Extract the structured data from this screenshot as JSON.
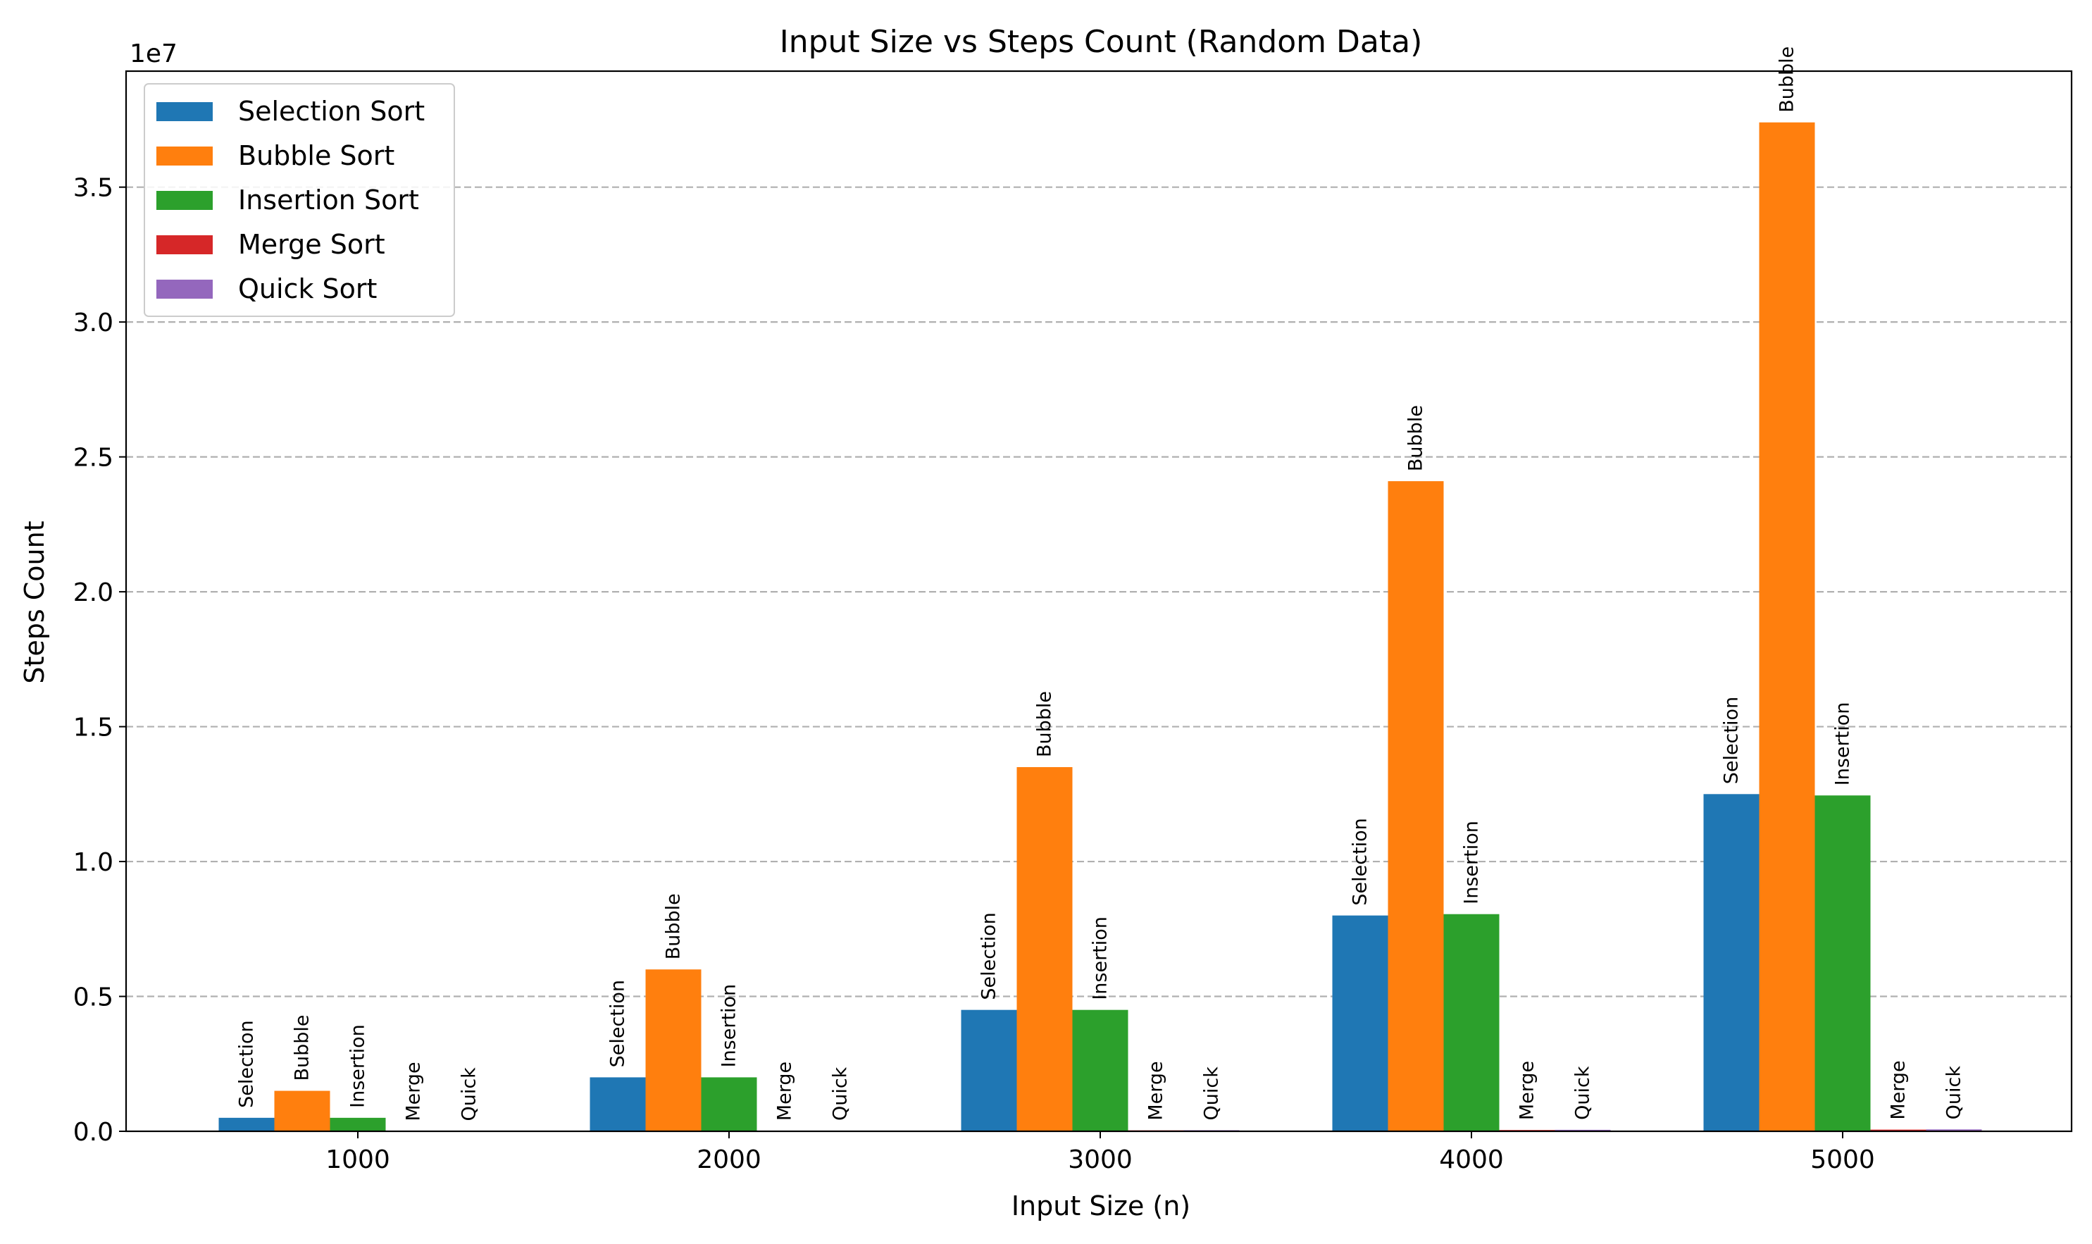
{
  "chart_data": {
    "type": "bar",
    "title": "Input Size vs Steps Count (Random Data)",
    "xlabel": "Input Size (n)",
    "ylabel": "Steps Count",
    "y_offset_label": "1e7",
    "y_scale": 10000000,
    "categories": [
      "1000",
      "2000",
      "3000",
      "4000",
      "5000"
    ],
    "ylim": [
      0,
      39300000
    ],
    "yticks": [
      0,
      5000000,
      10000000,
      15000000,
      20000000,
      25000000,
      30000000,
      35000000
    ],
    "ytick_labels": [
      "0.0",
      "0.5",
      "1.0",
      "1.5",
      "2.0",
      "2.5",
      "3.0",
      "3.5"
    ],
    "grid": "y-dashed",
    "legend_position": "top-left",
    "series": [
      {
        "name": "Selection Sort",
        "bar_label": "Selection",
        "color": "#1f77b4",
        "values": [
          500000,
          2000000,
          4500000,
          8000000,
          12500000
        ]
      },
      {
        "name": "Bubble Sort",
        "bar_label": "Bubble",
        "color": "#ff7f0e",
        "values": [
          1500000,
          6000000,
          13500000,
          24100000,
          37400000
        ]
      },
      {
        "name": "Insertion Sort",
        "bar_label": "Insertion",
        "color": "#2ca02c",
        "values": [
          500000,
          2000000,
          4500000,
          8050000,
          12450000
        ]
      },
      {
        "name": "Merge Sort",
        "bar_label": "Merge",
        "color": "#d62728",
        "values": [
          10000,
          22000,
          35000,
          48000,
          62000
        ]
      },
      {
        "name": "Quick Sort",
        "bar_label": "Quick",
        "color": "#9467bd",
        "values": [
          12000,
          25000,
          40000,
          55000,
          70000
        ]
      }
    ]
  }
}
